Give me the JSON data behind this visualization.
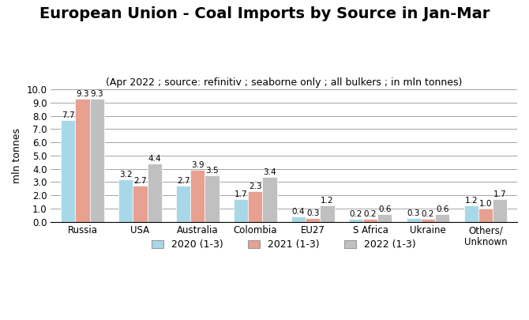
{
  "title": "European Union - Coal Imports by Source in Jan-Mar",
  "subtitle": "(Apr 2022 ; source: refinitiv ; seaborne only ; all bulkers ; in mln tonnes)",
  "ylabel": "mln tonnes",
  "categories": [
    "Russia",
    "USA",
    "Australia",
    "Colombia",
    "EU27",
    "S Africa",
    "Ukraine",
    "Others/\nUnknown"
  ],
  "series": {
    "2020 (1-3)": [
      7.7,
      3.2,
      2.7,
      1.7,
      0.4,
      0.2,
      0.3,
      1.2
    ],
    "2021 (1-3)": [
      9.3,
      2.7,
      3.9,
      2.3,
      0.3,
      0.2,
      0.2,
      1.0
    ],
    "2022 (1-3)": [
      9.3,
      4.4,
      3.5,
      3.4,
      1.2,
      0.6,
      0.6,
      1.7
    ]
  },
  "colors": {
    "2020 (1-3)": "#a8d8e8",
    "2021 (1-3)": "#e8a090",
    "2022 (1-3)": "#c0c0c0"
  },
  "ylim": [
    0,
    10.0
  ],
  "yticks": [
    0.0,
    1.0,
    2.0,
    3.0,
    4.0,
    5.0,
    6.0,
    7.0,
    8.0,
    9.0,
    10.0
  ],
  "bar_width": 0.25,
  "title_fontsize": 14,
  "subtitle_fontsize": 9,
  "label_fontsize": 7.5,
  "tick_fontsize": 8.5,
  "legend_fontsize": 9,
  "ylabel_fontsize": 9
}
